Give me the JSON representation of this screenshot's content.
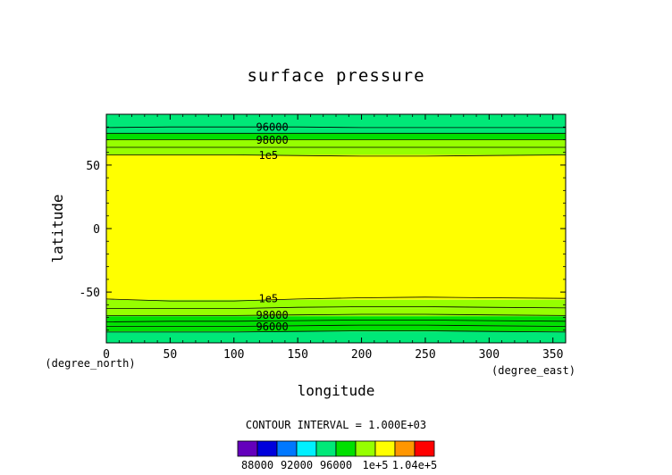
{
  "chart_data": {
    "type": "heatmap",
    "title": "surface pressure",
    "xlabel": "longitude",
    "ylabel": "latitude",
    "x_unit": "(degree_east)",
    "y_unit": "(degree_north)",
    "xlim": [
      0,
      360
    ],
    "ylim": [
      -90,
      90
    ],
    "x_ticks": [
      0,
      50,
      100,
      150,
      200,
      250,
      300,
      350
    ],
    "y_ticks": [
      -50,
      0,
      50
    ],
    "contour_interval_text": "CONTOUR INTERVAL = 1.000E+03",
    "color_levels": [
      86000,
      88000,
      90000,
      92000,
      94000,
      96000,
      98000,
      100000,
      102000,
      104000,
      106000
    ],
    "level_colors": [
      "#6400bc",
      "#0000dc",
      "#0078ff",
      "#00f0ff",
      "#00e878",
      "#00e000",
      "#96ff00",
      "#ffff00",
      "#ff9600",
      "#ff0000",
      "#ffb4b4"
    ],
    "colorbar_labels": [
      {
        "value": 88000,
        "text": "88000"
      },
      {
        "value": 92000,
        "text": "92000"
      },
      {
        "value": 96000,
        "text": "96000"
      },
      {
        "value": 100000,
        "text": "1e+5"
      },
      {
        "value": 104000,
        "text": "1.04e+5"
      }
    ],
    "bands": [
      {
        "lat_from": -90,
        "lat_to": -81,
        "level": 95000
      },
      {
        "lat_from": -81,
        "lat_to": -76,
        "level": 97000
      },
      {
        "lat_from": -76,
        "lat_to": -69,
        "level": 97000
      },
      {
        "lat_from": -69,
        "lat_to": -63,
        "level": 99000
      },
      {
        "lat_from": -63,
        "lat_to": -56,
        "level": 99000
      },
      {
        "lat_from": -56,
        "lat_to": 58,
        "level": 101000
      },
      {
        "lat_from": 58,
        "lat_to": 64,
        "level": 99000
      },
      {
        "lat_from": 64,
        "lat_to": 70,
        "level": 99000
      },
      {
        "lat_from": 70,
        "lat_to": 75,
        "level": 97000
      },
      {
        "lat_from": 75,
        "lat_to": 90,
        "level": 95000
      }
    ],
    "contours": [
      {
        "level": 95000,
        "lats": [
          -81.5,
          -81.5,
          -81.5,
          -81.0,
          -80.5,
          -80.5,
          -81.0,
          -81.5
        ]
      },
      {
        "level": 96000,
        "lats": [
          -77.0,
          -77.0,
          -77.0,
          -76.5,
          -76.0,
          -76.0,
          -76.5,
          -77.0
        ]
      },
      {
        "level": 97000,
        "lats": [
          -73.5,
          -73.0,
          -73.0,
          -72.5,
          -72.0,
          -72.0,
          -72.5,
          -73.0
        ]
      },
      {
        "level": 98000,
        "lats": [
          -68.5,
          -68.5,
          -68.5,
          -68.0,
          -67.5,
          -67.5,
          -68.0,
          -68.5
        ]
      },
      {
        "level": 99000,
        "lats": [
          -63.0,
          -63.0,
          -63.0,
          -62.0,
          -61.5,
          -61.5,
          -62.0,
          -62.5
        ]
      },
      {
        "level": 100000,
        "lats": [
          -55.5,
          -57.0,
          -57.0,
          -55.5,
          -54.5,
          -54.0,
          -54.5,
          -55.0
        ]
      },
      {
        "level": 100000,
        "lats": [
          58.0,
          58.0,
          58.0,
          57.5,
          57.0,
          57.0,
          57.5,
          58.0
        ]
      },
      {
        "level": 99000,
        "lats": [
          64.0,
          64.0,
          64.0,
          64.0,
          64.0,
          64.0,
          64.0,
          64.0
        ]
      },
      {
        "level": 98000,
        "lats": [
          70.0,
          70.0,
          70.0,
          70.0,
          70.0,
          70.0,
          70.0,
          70.0
        ]
      },
      {
        "level": 97000,
        "lats": [
          75.0,
          75.0,
          75.0,
          75.0,
          75.0,
          75.0,
          75.0,
          75.0
        ]
      },
      {
        "level": 96000,
        "lats": [
          79.5,
          80.0,
          80.0,
          80.0,
          79.5,
          79.5,
          79.5,
          79.5
        ]
      }
    ],
    "contour_lon_samples": [
      0,
      50,
      100,
      150,
      200,
      250,
      300,
      360
    ],
    "contour_labels": [
      {
        "text": "96000",
        "lon": 130,
        "lat": 80
      },
      {
        "text": "98000",
        "lon": 130,
        "lat": 70
      },
      {
        "text": "1e5",
        "lon": 127,
        "lat": 58
      },
      {
        "text": "1e5",
        "lon": 127,
        "lat": -55
      },
      {
        "text": "98000",
        "lon": 130,
        "lat": -68
      },
      {
        "text": "96000",
        "lon": 130,
        "lat": -77
      }
    ]
  }
}
